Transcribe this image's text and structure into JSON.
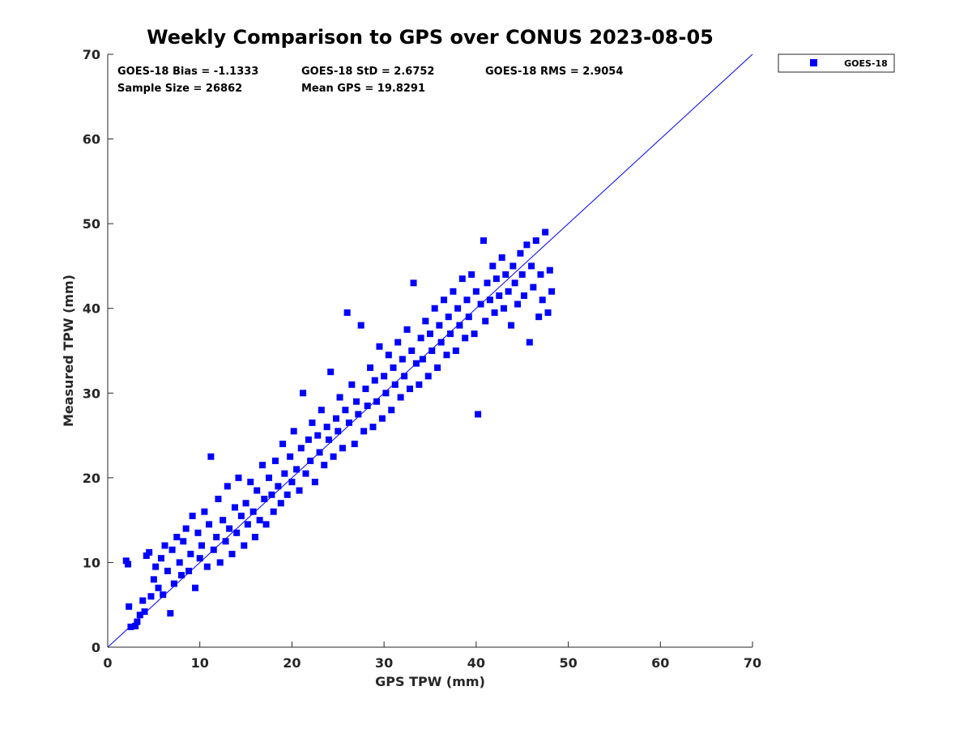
{
  "chart_data": {
    "type": "scatter",
    "title": "Weekly Comparison to GPS over CONUS 2023-08-05",
    "xlabel": "GPS TPW (mm)",
    "ylabel": "Measured TPW (mm)",
    "xlim": [
      0,
      70
    ],
    "ylim": [
      0,
      70
    ],
    "xticks": [
      "0",
      "10",
      "20",
      "30",
      "40",
      "50",
      "60",
      "70"
    ],
    "yticks": [
      "0",
      "10",
      "20",
      "30",
      "40",
      "50",
      "60",
      "70"
    ],
    "grid": false,
    "legend": {
      "position": "outside-top-right",
      "entries": [
        "GOES-18"
      ]
    },
    "stats": {
      "bias": "GOES-18 Bias = -1.1333",
      "std": "GOES-18 StD = 2.6752",
      "rms": "GOES-18 RMS = 2.9054",
      "sample_size": "Sample Size = 26862",
      "mean_gps": "Mean GPS = 19.8291"
    },
    "reference_line": {
      "x": [
        0,
        70
      ],
      "y": [
        0,
        70
      ]
    },
    "series": [
      {
        "name": "GOES-18",
        "color": "#0000ff",
        "marker": "square",
        "points": [
          [
            2.0,
            10.2
          ],
          [
            2.2,
            9.8
          ],
          [
            2.3,
            4.8
          ],
          [
            2.5,
            2.4
          ],
          [
            3.0,
            2.5
          ],
          [
            3.2,
            3.0
          ],
          [
            3.5,
            3.8
          ],
          [
            3.8,
            5.5
          ],
          [
            4.0,
            4.2
          ],
          [
            4.2,
            10.8
          ],
          [
            4.5,
            11.2
          ],
          [
            4.7,
            6.0
          ],
          [
            5.0,
            8.0
          ],
          [
            5.2,
            9.5
          ],
          [
            5.5,
            7.0
          ],
          [
            5.8,
            10.5
          ],
          [
            6.0,
            6.2
          ],
          [
            6.2,
            12.0
          ],
          [
            6.5,
            9.0
          ],
          [
            6.8,
            4.0
          ],
          [
            7.0,
            11.5
          ],
          [
            7.2,
            7.5
          ],
          [
            7.5,
            13.0
          ],
          [
            7.8,
            10.0
          ],
          [
            8.0,
            8.5
          ],
          [
            8.2,
            12.5
          ],
          [
            8.5,
            14.0
          ],
          [
            8.8,
            9.0
          ],
          [
            9.0,
            11.0
          ],
          [
            9.2,
            15.5
          ],
          [
            9.5,
            7.0
          ],
          [
            9.8,
            13.5
          ],
          [
            10.0,
            10.5
          ],
          [
            10.2,
            12.0
          ],
          [
            10.5,
            16.0
          ],
          [
            10.8,
            9.5
          ],
          [
            11.0,
            14.5
          ],
          [
            11.2,
            22.5
          ],
          [
            11.5,
            11.5
          ],
          [
            11.8,
            13.0
          ],
          [
            12.0,
            17.5
          ],
          [
            12.2,
            10.0
          ],
          [
            12.5,
            15.0
          ],
          [
            12.8,
            12.5
          ],
          [
            13.0,
            19.0
          ],
          [
            13.2,
            14.0
          ],
          [
            13.5,
            11.0
          ],
          [
            13.8,
            16.5
          ],
          [
            14.0,
            13.5
          ],
          [
            14.2,
            20.0
          ],
          [
            14.5,
            15.5
          ],
          [
            14.8,
            12.0
          ],
          [
            15.0,
            17.0
          ],
          [
            15.2,
            14.5
          ],
          [
            15.5,
            19.5
          ],
          [
            15.8,
            16.0
          ],
          [
            16.0,
            13.0
          ],
          [
            16.2,
            18.5
          ],
          [
            16.5,
            15.0
          ],
          [
            16.8,
            21.5
          ],
          [
            17.0,
            17.5
          ],
          [
            17.2,
            14.5
          ],
          [
            17.5,
            20.0
          ],
          [
            17.8,
            18.0
          ],
          [
            18.0,
            16.0
          ],
          [
            18.2,
            22.0
          ],
          [
            18.5,
            19.0
          ],
          [
            18.8,
            17.0
          ],
          [
            19.0,
            24.0
          ],
          [
            19.2,
            20.5
          ],
          [
            19.5,
            18.0
          ],
          [
            19.8,
            22.5
          ],
          [
            20.0,
            19.5
          ],
          [
            20.2,
            25.5
          ],
          [
            20.5,
            21.0
          ],
          [
            20.8,
            18.5
          ],
          [
            21.0,
            23.5
          ],
          [
            21.2,
            30.0
          ],
          [
            21.5,
            20.5
          ],
          [
            21.8,
            24.5
          ],
          [
            22.0,
            22.0
          ],
          [
            22.2,
            26.5
          ],
          [
            22.5,
            19.5
          ],
          [
            22.8,
            25.0
          ],
          [
            23.0,
            23.0
          ],
          [
            23.2,
            28.0
          ],
          [
            23.5,
            21.5
          ],
          [
            23.8,
            26.0
          ],
          [
            24.0,
            24.5
          ],
          [
            24.2,
            32.5
          ],
          [
            24.5,
            22.5
          ],
          [
            24.8,
            27.0
          ],
          [
            25.0,
            25.5
          ],
          [
            25.2,
            29.5
          ],
          [
            25.5,
            23.5
          ],
          [
            25.8,
            28.0
          ],
          [
            26.0,
            39.5
          ],
          [
            26.2,
            26.5
          ],
          [
            26.5,
            31.0
          ],
          [
            26.8,
            24.0
          ],
          [
            27.0,
            29.0
          ],
          [
            27.2,
            27.5
          ],
          [
            27.5,
            38.0
          ],
          [
            27.8,
            25.5
          ],
          [
            28.0,
            30.5
          ],
          [
            28.2,
            28.5
          ],
          [
            28.5,
            33.0
          ],
          [
            28.8,
            26.0
          ],
          [
            29.0,
            31.5
          ],
          [
            29.2,
            29.0
          ],
          [
            29.5,
            35.5
          ],
          [
            29.8,
            27.0
          ],
          [
            30.0,
            32.0
          ],
          [
            30.2,
            30.0
          ],
          [
            30.5,
            34.5
          ],
          [
            30.8,
            28.0
          ],
          [
            31.0,
            33.0
          ],
          [
            31.2,
            31.0
          ],
          [
            31.5,
            36.0
          ],
          [
            31.8,
            29.5
          ],
          [
            32.0,
            34.0
          ],
          [
            32.2,
            32.0
          ],
          [
            32.5,
            37.5
          ],
          [
            32.8,
            30.5
          ],
          [
            33.0,
            35.0
          ],
          [
            33.2,
            43.0
          ],
          [
            33.5,
            33.5
          ],
          [
            33.8,
            31.0
          ],
          [
            34.0,
            36.5
          ],
          [
            34.2,
            34.0
          ],
          [
            34.5,
            38.5
          ],
          [
            34.8,
            32.0
          ],
          [
            35.0,
            37.0
          ],
          [
            35.2,
            35.0
          ],
          [
            35.5,
            40.0
          ],
          [
            35.8,
            33.0
          ],
          [
            36.0,
            38.0
          ],
          [
            36.2,
            36.0
          ],
          [
            36.5,
            41.0
          ],
          [
            36.8,
            34.5
          ],
          [
            37.0,
            39.0
          ],
          [
            37.2,
            37.0
          ],
          [
            37.5,
            42.0
          ],
          [
            37.8,
            35.0
          ],
          [
            38.0,
            40.0
          ],
          [
            38.2,
            38.0
          ],
          [
            38.5,
            43.5
          ],
          [
            38.8,
            36.5
          ],
          [
            39.0,
            41.0
          ],
          [
            39.2,
            39.0
          ],
          [
            39.5,
            44.0
          ],
          [
            39.8,
            37.0
          ],
          [
            40.0,
            42.0
          ],
          [
            40.2,
            27.5
          ],
          [
            40.5,
            40.5
          ],
          [
            40.8,
            48.0
          ],
          [
            41.0,
            38.5
          ],
          [
            41.2,
            43.0
          ],
          [
            41.5,
            41.0
          ],
          [
            41.8,
            45.0
          ],
          [
            42.0,
            39.5
          ],
          [
            42.2,
            43.5
          ],
          [
            42.5,
            41.5
          ],
          [
            42.8,
            46.0
          ],
          [
            43.0,
            40.0
          ],
          [
            43.2,
            44.0
          ],
          [
            43.5,
            42.0
          ],
          [
            43.8,
            38.0
          ],
          [
            44.0,
            45.0
          ],
          [
            44.2,
            43.0
          ],
          [
            44.5,
            40.5
          ],
          [
            44.8,
            46.5
          ],
          [
            45.0,
            44.0
          ],
          [
            45.2,
            41.5
          ],
          [
            45.5,
            47.5
          ],
          [
            45.8,
            36.0
          ],
          [
            46.0,
            45.0
          ],
          [
            46.2,
            42.5
          ],
          [
            46.5,
            48.0
          ],
          [
            46.8,
            39.0
          ],
          [
            47.0,
            44.0
          ],
          [
            47.2,
            41.0
          ],
          [
            47.5,
            49.0
          ],
          [
            47.8,
            39.5
          ],
          [
            48.0,
            44.5
          ],
          [
            48.2,
            42.0
          ]
        ]
      }
    ]
  }
}
